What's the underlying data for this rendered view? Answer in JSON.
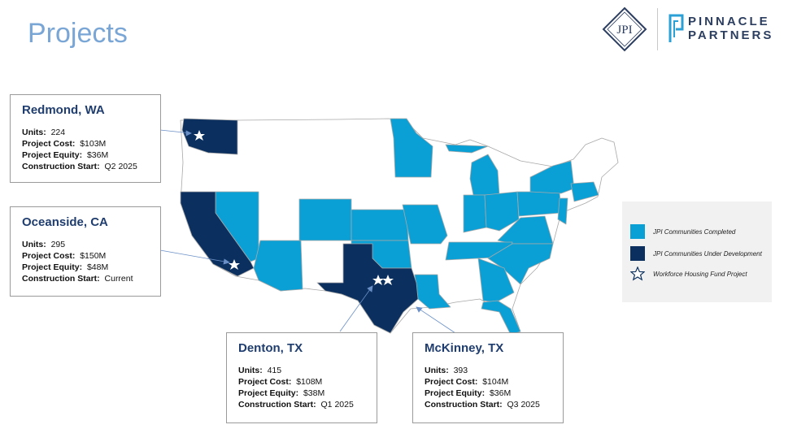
{
  "page": {
    "title": "Projects"
  },
  "logos": {
    "jpi_text": "JPI",
    "pinnacle_line1": "PINNACLE",
    "pinnacle_line2": "PARTNERS"
  },
  "colors": {
    "completed": "#0aa0d6",
    "under_development": "#0b2f5e",
    "other_state": "#ffffff",
    "title": "#7aa6d6",
    "star": "#ffffff"
  },
  "legend": [
    {
      "label": "JPI Communities Completed",
      "type": "completed"
    },
    {
      "label": "JPI Communities Under Development",
      "type": "under_development"
    },
    {
      "label": "Workforce Housing Fund Project",
      "type": "star-icon"
    }
  ],
  "projects": [
    {
      "name": "Redmond, WA",
      "units_label": "Units:",
      "units": "224",
      "cost_label": "Project Cost:",
      "cost": "$103M",
      "equity_label": "Project Equity:",
      "equity": "$36M",
      "start_label": "Construction Start:",
      "start": "Q2 2025"
    },
    {
      "name": "Oceanside, CA",
      "units_label": "Units:",
      "units": "295",
      "cost_label": "Project Cost:",
      "cost": "$150M",
      "equity_label": "Project Equity:",
      "equity": "$48M",
      "start_label": "Construction Start:",
      "start": "Current"
    },
    {
      "name": "Denton, TX",
      "units_label": "Units:",
      "units": "415",
      "cost_label": "Project Cost:",
      "cost": "$108M",
      "equity_label": "Project Equity:",
      "equity": "$38M",
      "start_label": "Construction Start:",
      "start": "Q1 2025"
    },
    {
      "name": "McKinney, TX",
      "units_label": "Units:",
      "units": "393",
      "cost_label": "Project Cost:",
      "cost": "$104M",
      "equity_label": "Project Equity:",
      "equity": "$36M",
      "start_label": "Construction Start:",
      "start": "Q3 2025"
    }
  ]
}
